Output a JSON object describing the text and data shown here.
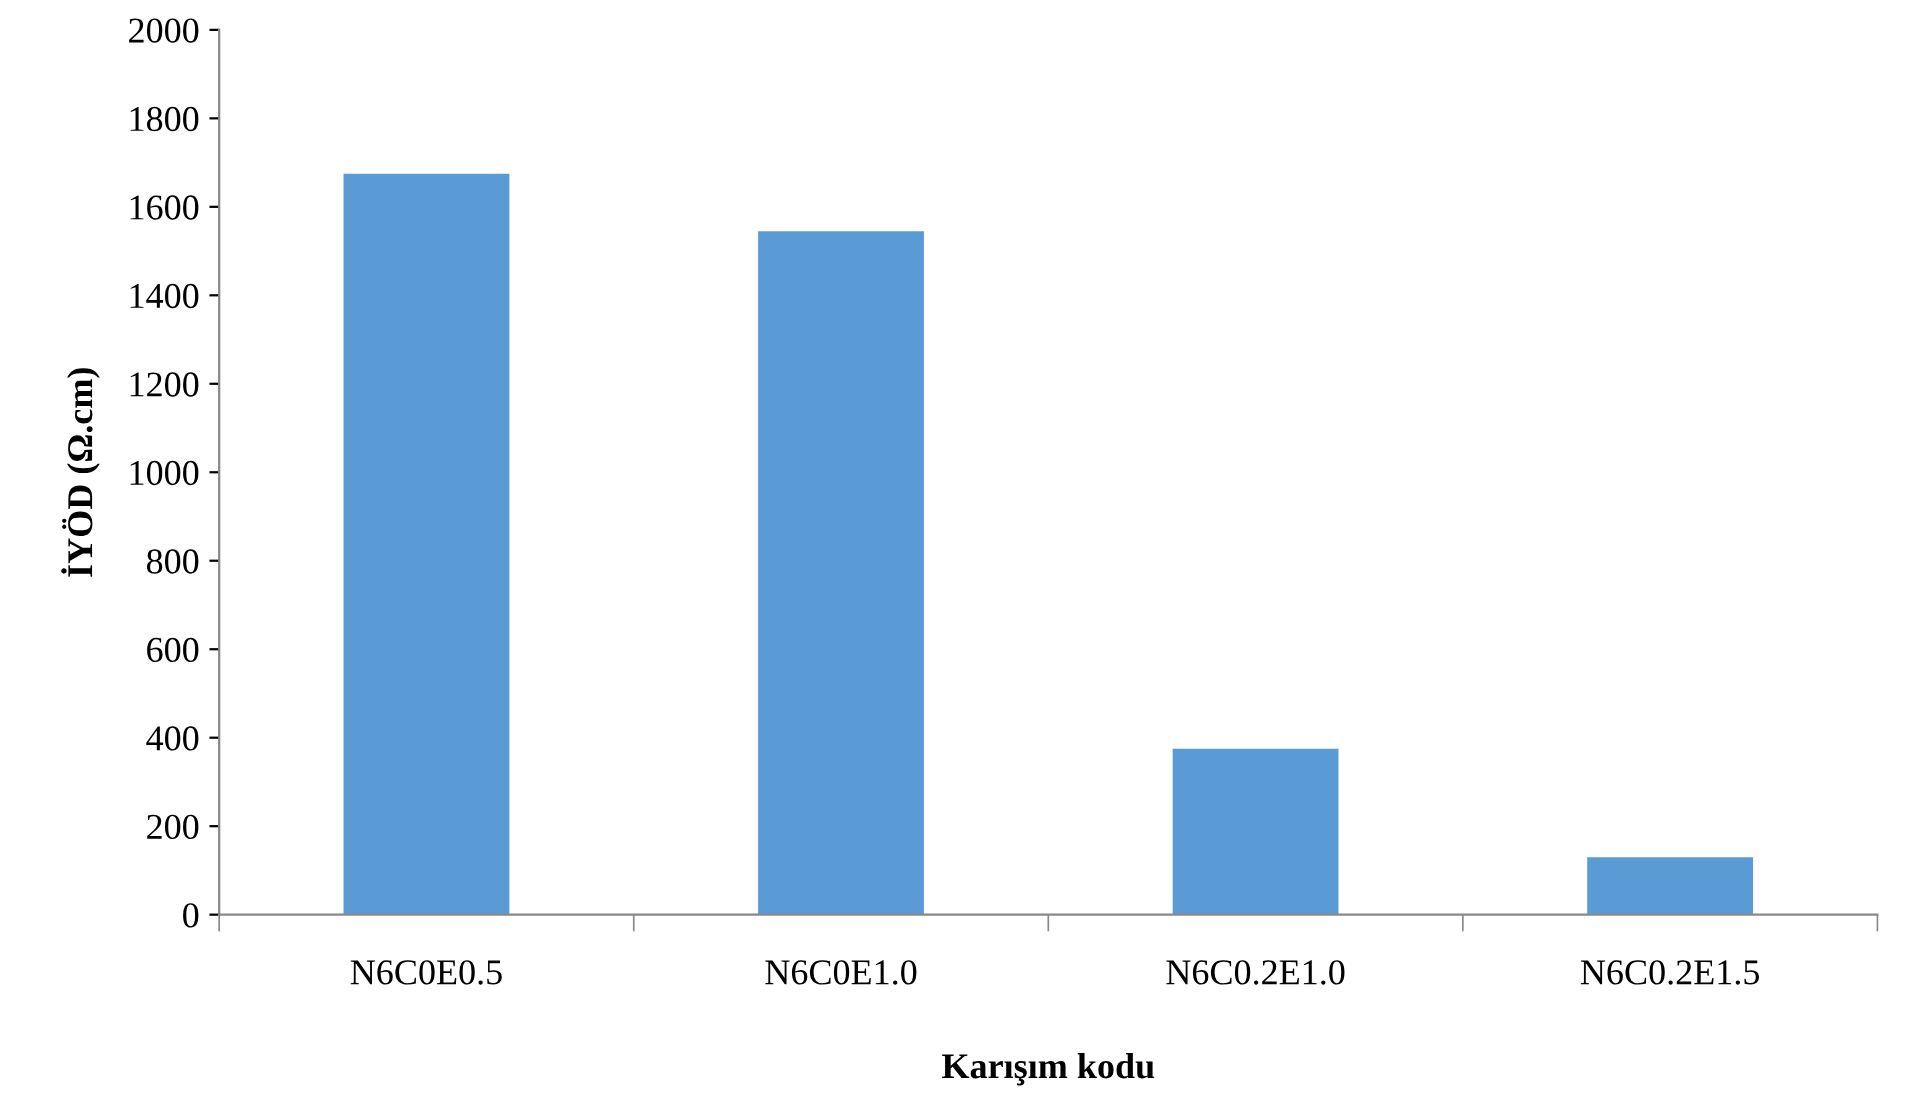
{
  "chart_data": {
    "type": "bar",
    "xlabel": "Karışım kodu",
    "ylabel": "İYÖD (Ω.cm)",
    "categories": [
      "N6C0E0.5",
      "N6C0E1.0",
      "N6C0.2E1.0",
      "N6C0.2E1.5"
    ],
    "values": [
      1675,
      1545,
      375,
      130
    ],
    "color": "#5b9bd5",
    "ylim": [
      0,
      2000
    ],
    "yticks": [
      0,
      200,
      400,
      600,
      800,
      1000,
      1200,
      1400,
      1600,
      1800,
      2000
    ],
    "grid": false,
    "legend": false
  }
}
